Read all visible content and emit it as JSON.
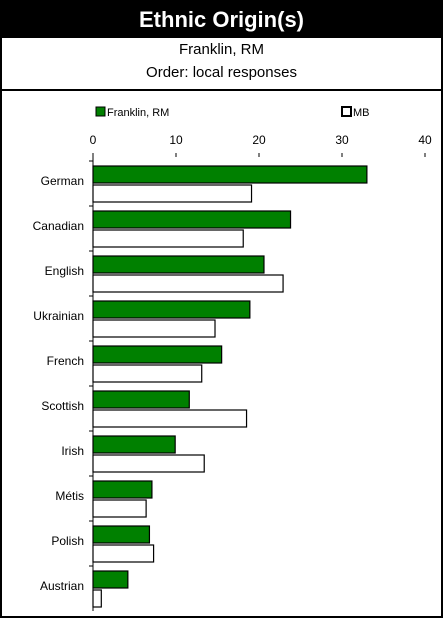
{
  "header": {
    "title": "Ethnic Origin(s)",
    "subtitle": "Franklin, RM",
    "order_note": "Order: local responses"
  },
  "colors": {
    "local": "#008000",
    "province": "#ffffff",
    "outline": "#000000"
  },
  "chart_data": {
    "type": "bar",
    "orientation": "horizontal",
    "categories": [
      "German",
      "Canadian",
      "English",
      "Ukrainian",
      "French",
      "Scottish",
      "Irish",
      "Métis",
      "Polish",
      "Austrian"
    ],
    "series": [
      {
        "name": "Franklin, RM",
        "values": [
          33.0,
          23.8,
          20.6,
          18.9,
          15.5,
          11.6,
          9.9,
          7.1,
          6.8,
          4.2
        ]
      },
      {
        "name": "MB",
        "values": [
          19.1,
          18.1,
          22.9,
          14.7,
          13.1,
          18.5,
          13.4,
          6.4,
          7.3,
          1.0
        ]
      }
    ],
    "xlim": [
      0,
      40
    ],
    "xticks": [
      "0",
      "10",
      "20",
      "30",
      "40"
    ],
    "axis_position": "top",
    "legend_position": "top",
    "grid": false
  }
}
